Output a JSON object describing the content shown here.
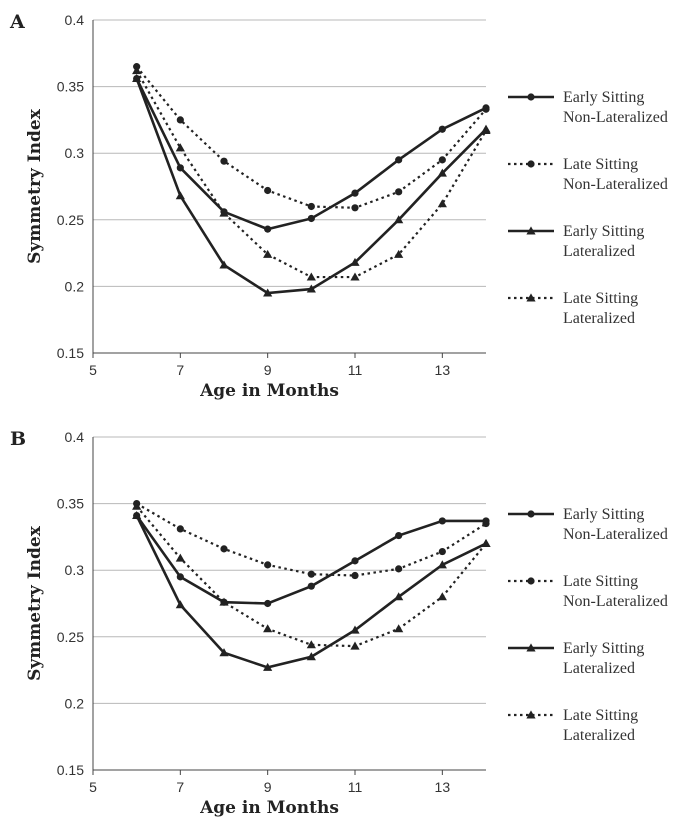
{
  "chart_data": [
    {
      "type": "line",
      "panel_label": "A",
      "xlabel": "Age in Months",
      "ylabel": "Symmetry Index",
      "xlim": [
        5,
        14
      ],
      "ylim": [
        0.15,
        0.4
      ],
      "xticks": [
        "5",
        "7",
        "9",
        "11",
        "13"
      ],
      "yticks": [
        "0.4",
        "0.35",
        "0.3",
        "0.25",
        "0.2",
        "0.15"
      ],
      "grid": "horizontal",
      "legend_position": "right",
      "series": [
        {
          "name": "Early Sitting Non-Lateralized",
          "name_lines": [
            "Early Sitting",
            "Non-Lateralized"
          ],
          "style": "solid",
          "marker": "circle",
          "x": [
            6,
            7,
            8,
            9,
            10,
            11,
            12,
            13,
            14
          ],
          "y": [
            0.356,
            0.289,
            0.256,
            0.243,
            0.251,
            0.27,
            0.295,
            0.318,
            0.334
          ]
        },
        {
          "name": "Late Sitting Non-Lateralized",
          "name_lines": [
            "Late Sitting",
            "Non-Lateralized"
          ],
          "style": "dotted",
          "marker": "circle",
          "x": [
            6,
            7,
            8,
            9,
            10,
            11,
            12,
            13,
            14
          ],
          "y": [
            0.365,
            0.325,
            0.294,
            0.272,
            0.26,
            0.259,
            0.271,
            0.295,
            0.333
          ]
        },
        {
          "name": "Early Sitting Lateralized",
          "name_lines": [
            "Early Sitting",
            "Lateralized"
          ],
          "style": "solid",
          "marker": "triangle",
          "x": [
            6,
            7,
            8,
            9,
            10,
            11,
            12,
            13,
            14
          ],
          "y": [
            0.356,
            0.268,
            0.216,
            0.195,
            0.198,
            0.218,
            0.25,
            0.285,
            0.318
          ]
        },
        {
          "name": "Late Sitting Lateralized",
          "name_lines": [
            "Late Sitting",
            "Lateralized"
          ],
          "style": "dotted",
          "marker": "triangle",
          "x": [
            6,
            7,
            8,
            9,
            10,
            11,
            12,
            13,
            14
          ],
          "y": [
            0.362,
            0.304,
            0.255,
            0.224,
            0.207,
            0.207,
            0.224,
            0.262,
            0.317
          ]
        }
      ]
    },
    {
      "type": "line",
      "panel_label": "B",
      "xlabel": "Age in Months",
      "ylabel": "Symmetry Index",
      "xlim": [
        5,
        14
      ],
      "ylim": [
        0.15,
        0.4
      ],
      "xticks": [
        "5",
        "7",
        "9",
        "11",
        "13"
      ],
      "yticks": [
        "0.4",
        "0.35",
        "0.3",
        "0.25",
        "0.2",
        "0.15"
      ],
      "grid": "horizontal",
      "legend_position": "right",
      "series": [
        {
          "name": "Early Sitting Non-Lateralized",
          "name_lines": [
            "Early Sitting",
            "Non-Lateralized"
          ],
          "style": "solid",
          "marker": "circle",
          "x": [
            6,
            7,
            8,
            9,
            10,
            11,
            12,
            13,
            14
          ],
          "y": [
            0.341,
            0.295,
            0.276,
            0.275,
            0.288,
            0.307,
            0.326,
            0.337,
            0.337
          ]
        },
        {
          "name": "Late Sitting Non-Lateralized",
          "name_lines": [
            "Late Sitting",
            "Non-Lateralized"
          ],
          "style": "dotted",
          "marker": "circle",
          "x": [
            6,
            7,
            8,
            9,
            10,
            11,
            12,
            13,
            14
          ],
          "y": [
            0.35,
            0.331,
            0.316,
            0.304,
            0.297,
            0.296,
            0.301,
            0.314,
            0.335
          ]
        },
        {
          "name": "Early Sitting Lateralized",
          "name_lines": [
            "Early Sitting",
            "Lateralized"
          ],
          "style": "solid",
          "marker": "triangle",
          "x": [
            6,
            7,
            8,
            9,
            10,
            11,
            12,
            13,
            14
          ],
          "y": [
            0.341,
            0.274,
            0.238,
            0.227,
            0.235,
            0.255,
            0.28,
            0.304,
            0.32
          ]
        },
        {
          "name": "Late Sitting Lateralized",
          "name_lines": [
            "Late Sitting",
            "Lateralized"
          ],
          "style": "dotted",
          "marker": "triangle",
          "x": [
            6,
            7,
            8,
            9,
            10,
            11,
            12,
            13,
            14
          ],
          "y": [
            0.348,
            0.309,
            0.276,
            0.256,
            0.244,
            0.243,
            0.256,
            0.28,
            0.32
          ]
        }
      ]
    }
  ]
}
